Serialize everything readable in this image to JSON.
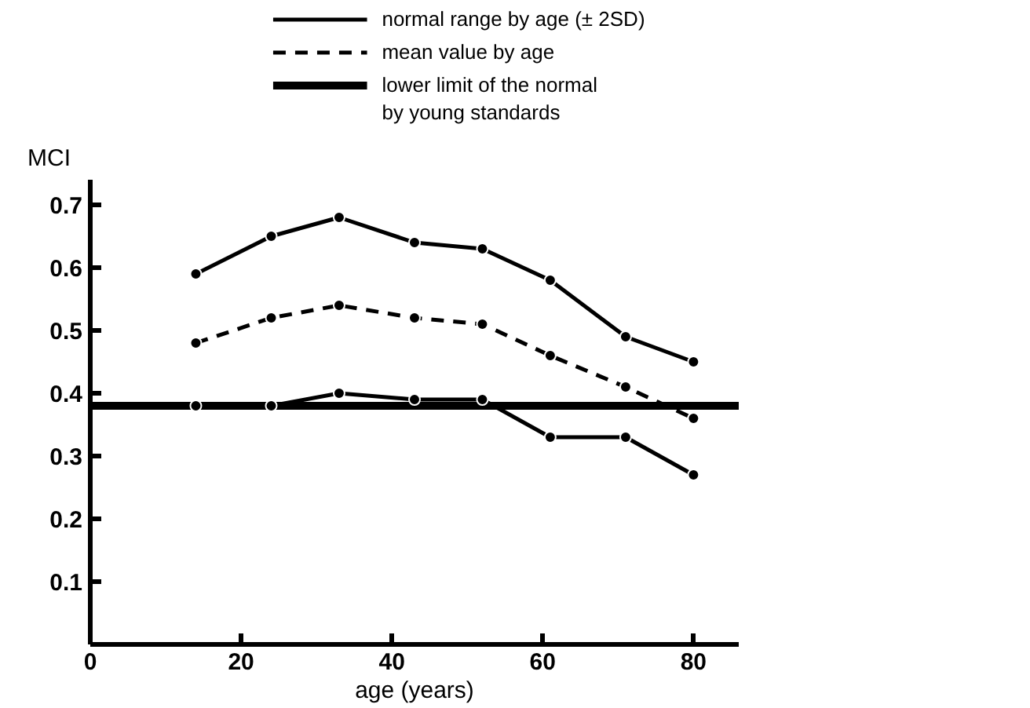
{
  "chart_data": {
    "type": "line",
    "xlabel": "age (years)",
    "ylabel": "MCI",
    "x": [
      14,
      24,
      33,
      43,
      52,
      61,
      71,
      80
    ],
    "series": [
      {
        "name": "normal range by age (± 2SD)",
        "color": "#000000",
        "line_style": "solid",
        "values": [
          0.59,
          0.65,
          0.68,
          0.64,
          0.63,
          0.58,
          0.49,
          0.45
        ]
      },
      {
        "name": "mean value by age",
        "color": "#000000",
        "line_style": "dashed",
        "values": [
          0.48,
          0.52,
          0.54,
          0.52,
          0.51,
          0.46,
          0.41,
          0.36
        ]
      },
      {
        "color": "#000000",
        "line_style": "solid",
        "values": [
          0.38,
          0.38,
          0.4,
          0.39,
          0.39,
          0.33,
          0.33,
          0.27
        ]
      }
    ],
    "ref_lines": [
      {
        "axis": "y",
        "value": 0.38,
        "label": "lower limit of the normal\nby young standards",
        "color": "#000000"
      }
    ],
    "xlim": [
      0,
      86
    ],
    "ylim": [
      0,
      0.74
    ],
    "xticks": [
      0,
      20,
      40,
      60,
      80
    ],
    "yticks": [
      0.1,
      0.2,
      0.3,
      0.4,
      0.5,
      0.6,
      0.7
    ],
    "marker": "circle",
    "grid": false,
    "legend": "top right"
  }
}
